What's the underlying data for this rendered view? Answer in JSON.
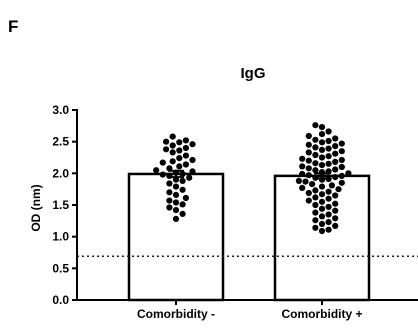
{
  "panel_letter": "F",
  "chart_data": {
    "type": "bar",
    "title": "IgG",
    "xlabel": "",
    "ylabel": "OD (nm)",
    "ylim": [
      0,
      3.0
    ],
    "yticks": [
      "0.0",
      "0.5",
      "1.0",
      "1.5",
      "2.0",
      "2.5",
      "3.0"
    ],
    "categories": [
      "Comorbidity -",
      "Comorbidity +"
    ],
    "values": [
      1.99,
      1.96
    ],
    "error": [
      0.05,
      0.04
    ],
    "reference_line": 0.69,
    "grid": false,
    "colors": {
      "bar_fill": "#ffffff",
      "bar_stroke": "#000000",
      "points": "#000000",
      "axis": "#000000"
    },
    "points": [
      [
        2.58,
        2.52,
        2.5,
        2.49,
        2.46,
        2.44,
        2.4,
        2.38,
        2.36,
        2.33,
        2.28,
        2.24,
        2.21,
        2.19,
        2.17,
        2.14,
        2.11,
        2.08,
        2.05,
        2.03,
        2.01,
        1.99,
        1.98,
        1.96,
        1.93,
        1.9,
        1.88,
        1.84,
        1.79,
        1.74,
        1.7,
        1.66,
        1.61,
        1.57,
        1.54,
        1.51,
        1.46,
        1.42,
        1.36,
        1.28
      ],
      [
        2.76,
        2.73,
        2.66,
        2.62,
        2.59,
        2.55,
        2.53,
        2.51,
        2.49,
        2.47,
        2.45,
        2.43,
        2.41,
        2.39,
        2.37,
        2.35,
        2.33,
        2.31,
        2.29,
        2.27,
        2.25,
        2.23,
        2.21,
        2.2,
        2.18,
        2.16,
        2.15,
        2.13,
        2.11,
        2.1,
        2.08,
        2.06,
        2.05,
        2.03,
        2.02,
        2.0,
        1.99,
        1.97,
        1.96,
        1.94,
        1.93,
        1.91,
        1.9,
        1.88,
        1.87,
        1.85,
        1.83,
        1.81,
        1.79,
        1.77,
        1.75,
        1.73,
        1.71,
        1.69,
        1.67,
        1.65,
        1.62,
        1.6,
        1.57,
        1.55,
        1.52,
        1.5,
        1.47,
        1.44,
        1.41,
        1.38,
        1.35,
        1.32,
        1.29,
        1.26,
        1.23,
        1.2,
        1.17,
        1.14,
        1.11,
        1.09
      ]
    ]
  }
}
